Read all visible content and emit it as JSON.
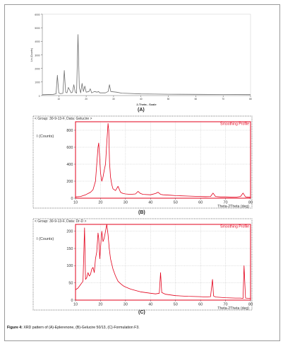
{
  "charts": [
    {
      "panel": "(A)",
      "xlabel": "2-Theta - Scale",
      "ylabel": "Lin (Counts)",
      "xticks": [
        "10",
        "20",
        "30",
        "40",
        "50",
        "60",
        "70",
        "80"
      ],
      "yticks": [
        "0",
        "1000",
        "2000",
        "3000",
        "4000",
        "5000",
        "6000"
      ],
      "color": "#6d6d6d"
    },
    {
      "panel": "(B)",
      "header": "< Group: 30-9-13-F, Data: Gelucire >",
      "legend": "Smoothing Profile",
      "ylabel": "I (Counts)",
      "xlabel": "Theta-2Theta (deg)",
      "xticks": [
        "10",
        "20",
        "30",
        "40",
        "50",
        "60",
        "70",
        "80"
      ],
      "yticks": [
        "0",
        "200",
        "400",
        "600",
        "800"
      ],
      "color": "#e3001b"
    },
    {
      "panel": "(C)",
      "header": "< Group: 30-9-13-F, Data: Dr-D >",
      "legend": "Smoothing Profile",
      "ylabel": "I (Counts)",
      "xlabel": "Theta-2Theta (deg)",
      "xticks": [
        "10",
        "20",
        "30",
        "40",
        "50",
        "60",
        "70",
        "80"
      ],
      "yticks": [
        "0",
        "50",
        "100",
        "150",
        "200"
      ],
      "color": "#e3001b"
    }
  ],
  "caption": {
    "bold": "Figure 4:",
    "text": " XRD pattern of (A)-Eplerenone, (B)-Gelucire 50/13, (C)-Formulation F3."
  },
  "chart_data": [
    {
      "type": "line",
      "title": "",
      "xlabel": "2-Theta - Scale",
      "ylabel": "Lin (Counts)",
      "xlim": [
        4,
        80
      ],
      "ylim": [
        0,
        6000
      ],
      "grid": false,
      "series": [
        {
          "x": [
            4,
            8,
            9,
            9.5,
            10,
            10.5,
            11.5,
            12,
            12.5,
            13,
            13.5,
            14.5,
            15,
            15.5,
            16,
            16.5,
            17,
            17.5,
            18,
            18.5,
            19,
            19.5,
            20,
            21,
            21.5,
            22,
            23,
            24,
            24.5,
            25,
            27,
            28,
            28.5,
            29,
            31,
            33,
            35,
            40,
            45,
            50,
            60,
            70,
            80
          ],
          "y": [
            60,
            90,
            130,
            1500,
            200,
            140,
            160,
            1850,
            250,
            200,
            600,
            200,
            250,
            800,
            250,
            180,
            4500,
            600,
            200,
            900,
            300,
            700,
            250,
            300,
            500,
            200,
            300,
            250,
            300,
            200,
            200,
            300,
            800,
            300,
            250,
            180,
            160,
            120,
            110,
            100,
            90,
            80,
            70
          ]
        }
      ]
    },
    {
      "type": "line",
      "title": "",
      "xlabel": "Theta-2Theta (deg)",
      "ylabel": "I (Counts)",
      "xlim": [
        10,
        80
      ],
      "ylim": [
        0,
        900
      ],
      "legend": "top-right",
      "grid": true,
      "series": [
        {
          "name": "Smoothing Profile",
          "x": [
            10,
            12,
            14,
            16,
            17,
            18,
            18.5,
            19,
            19.3,
            19.7,
            20,
            20.5,
            21,
            21.5,
            22,
            22.5,
            23,
            23.3,
            23.6,
            24,
            24.5,
            25,
            26,
            27,
            28,
            29,
            30,
            32,
            34,
            35,
            36,
            37,
            40,
            42,
            43,
            44,
            45,
            48,
            50,
            55,
            60,
            62,
            64,
            65,
            66,
            68,
            70,
            74,
            76,
            77,
            78,
            80
          ],
          "y": [
            15,
            20,
            40,
            70,
            100,
            200,
            400,
            600,
            650,
            450,
            300,
            200,
            250,
            330,
            400,
            650,
            880,
            800,
            420,
            250,
            160,
            110,
            90,
            140,
            70,
            55,
            50,
            45,
            50,
            80,
            55,
            45,
            40,
            55,
            70,
            45,
            40,
            35,
            30,
            25,
            20,
            18,
            20,
            60,
            20,
            15,
            15,
            12,
            20,
            60,
            15,
            10
          ]
        }
      ]
    },
    {
      "type": "line",
      "title": "",
      "xlabel": "Theta-2Theta (deg)",
      "ylabel": "I (Counts)",
      "xlim": [
        10,
        80
      ],
      "ylim": [
        0,
        220
      ],
      "legend": "top-right",
      "grid": true,
      "series": [
        {
          "name": "Smoothing Profile",
          "x": [
            10,
            11,
            12,
            13,
            13.6,
            14,
            14.5,
            15,
            15.5,
            16,
            16.5,
            17,
            17.5,
            18,
            18.5,
            19,
            19.3,
            19.7,
            20,
            20.5,
            21,
            21.5,
            22,
            22.5,
            23,
            23.5,
            24,
            25,
            26,
            27,
            28,
            29,
            30,
            32,
            34,
            36,
            38,
            40,
            42,
            43.5,
            44,
            44.5,
            46,
            48,
            50,
            55,
            60,
            62,
            64,
            64.8,
            65.2,
            66,
            68,
            70,
            74,
            76,
            77,
            77.4,
            78,
            80
          ],
          "y": [
            30,
            35,
            45,
            55,
            210,
            60,
            65,
            80,
            70,
            75,
            90,
            95,
            80,
            120,
            140,
            195,
            180,
            120,
            150,
            200,
            170,
            180,
            200,
            225,
            190,
            150,
            120,
            90,
            70,
            55,
            48,
            42,
            38,
            32,
            28,
            24,
            22,
            20,
            18,
            20,
            80,
            22,
            17,
            15,
            13,
            11,
            10,
            9,
            10,
            60,
            12,
            9,
            8,
            7,
            6,
            6,
            5,
            100,
            6,
            5
          ]
        }
      ]
    }
  ]
}
